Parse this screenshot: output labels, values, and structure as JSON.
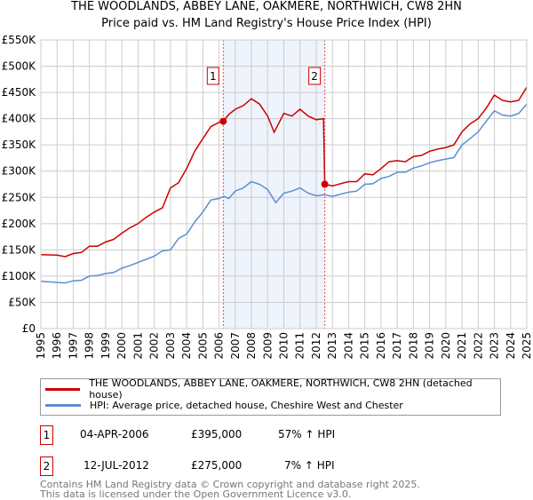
{
  "chart_data": {
    "type": "line",
    "title": "THE WOODLANDS, ABBEY LANE, OAKMERE, NORTHWICH, CW8 2HN",
    "subtitle": "Price paid vs. HM Land Registry's House Price Index (HPI)",
    "xlim": [
      1995,
      2025
    ],
    "ylim": [
      0,
      550000
    ],
    "grid": true,
    "y_ticks": [
      0,
      50000,
      100000,
      150000,
      200000,
      250000,
      300000,
      350000,
      400000,
      450000,
      500000,
      550000
    ],
    "y_tick_labels": [
      "£0",
      "£50K",
      "£100K",
      "£150K",
      "£200K",
      "£250K",
      "£300K",
      "£350K",
      "£400K",
      "£450K",
      "£500K",
      "£550K"
    ],
    "x_ticks": [
      "1995",
      "1996",
      "1997",
      "1998",
      "1999",
      "2000",
      "2001",
      "2002",
      "2003",
      "2004",
      "2005",
      "2006",
      "2007",
      "2008",
      "2009",
      "2010",
      "2011",
      "2012",
      "2013",
      "2014",
      "2015",
      "2016",
      "2017",
      "2018",
      "2019",
      "2020",
      "2021",
      "2022",
      "2023",
      "2024",
      "2025"
    ],
    "shaded_range": [
      2006.26,
      2012.53
    ],
    "series": [
      {
        "name": "THE WOODLANDS, ABBEY LANE, OAKMERE, NORTHWICH, CW8 2HN (detached house)",
        "color": "#cc0000",
        "x": [
          1995,
          1996,
          1996.5,
          1997,
          1997.5,
          1998,
          1998.5,
          1999,
          1999.5,
          2000,
          2000.5,
          2001,
          2001.5,
          2002,
          2002.5,
          2003,
          2003.5,
          2004,
          2004.5,
          2005,
          2005.5,
          2006,
          2006.26,
          2006.6,
          2007,
          2007.5,
          2008,
          2008.5,
          2009,
          2009.4,
          2010,
          2010.5,
          2011,
          2011.5,
          2012,
          2012.45,
          2012.53,
          2013,
          2013.5,
          2014,
          2014.5,
          2015,
          2015.5,
          2016,
          2016.5,
          2017,
          2017.5,
          2018,
          2018.5,
          2019,
          2019.5,
          2020,
          2020.5,
          2021,
          2021.5,
          2022,
          2022.5,
          2023,
          2023.5,
          2024,
          2024.5,
          2025
        ],
        "y": [
          141000,
          140000,
          137000,
          143000,
          145000,
          157000,
          157000,
          165000,
          170000,
          182000,
          192000,
          200000,
          212000,
          222000,
          230000,
          268000,
          278000,
          305000,
          338000,
          362000,
          385000,
          393000,
          395000,
          408000,
          418000,
          425000,
          438000,
          428000,
          405000,
          374000,
          410000,
          405000,
          418000,
          405000,
          398000,
          400000,
          275000,
          272000,
          276000,
          280000,
          280000,
          295000,
          293000,
          305000,
          318000,
          320000,
          318000,
          328000,
          330000,
          338000,
          342000,
          345000,
          350000,
          375000,
          390000,
          400000,
          420000,
          445000,
          435000,
          432000,
          435000,
          460000
        ]
      },
      {
        "name": "HPI: Average price, detached house, Cheshire West and Chester",
        "color": "#5b8fd0",
        "x": [
          1995,
          1996,
          1996.5,
          1997,
          1997.5,
          1998,
          1998.5,
          1999,
          1999.5,
          2000,
          2000.5,
          2001,
          2001.5,
          2002,
          2002.5,
          2003,
          2003.5,
          2004,
          2004.5,
          2005,
          2005.5,
          2006,
          2006.3,
          2006.6,
          2007,
          2007.5,
          2008,
          2008.5,
          2009,
          2009.5,
          2010,
          2010.5,
          2011,
          2011.5,
          2012,
          2012.5,
          2013,
          2013.5,
          2014,
          2014.5,
          2015,
          2015.5,
          2016,
          2016.5,
          2017,
          2017.5,
          2018,
          2018.5,
          2019,
          2019.5,
          2020,
          2020.5,
          2021,
          2021.5,
          2022,
          2022.5,
          2023,
          2023.5,
          2024,
          2024.5,
          2025
        ],
        "y": [
          90000,
          88000,
          87000,
          91000,
          92000,
          100000,
          101000,
          105000,
          107000,
          115000,
          120000,
          126000,
          132000,
          138000,
          148000,
          150000,
          172000,
          180000,
          203000,
          222000,
          245000,
          248000,
          252000,
          248000,
          262000,
          268000,
          280000,
          275000,
          265000,
          240000,
          258000,
          262000,
          268000,
          258000,
          253000,
          255000,
          252000,
          256000,
          260000,
          262000,
          275000,
          276000,
          286000,
          290000,
          298000,
          298000,
          306000,
          310000,
          316000,
          320000,
          323000,
          326000,
          350000,
          362000,
          375000,
          395000,
          415000,
          407000,
          405000,
          410000,
          428000
        ]
      }
    ],
    "sales": [
      {
        "label": "1",
        "x": 2006.26,
        "y": 395000,
        "date": "04-APR-2006",
        "price": "£395,000",
        "hpi": "57% ↑ HPI"
      },
      {
        "label": "2",
        "x": 2012.53,
        "y": 275000,
        "date": "12-JUL-2012",
        "price": "£275,000",
        "hpi": "7% ↑ HPI"
      }
    ],
    "legend_placement": "below"
  },
  "footer": {
    "line1": "Contains HM Land Registry data © Crown copyright and database right 2025.",
    "line2": "This data is licensed under the Open Government Licence v3.0."
  }
}
